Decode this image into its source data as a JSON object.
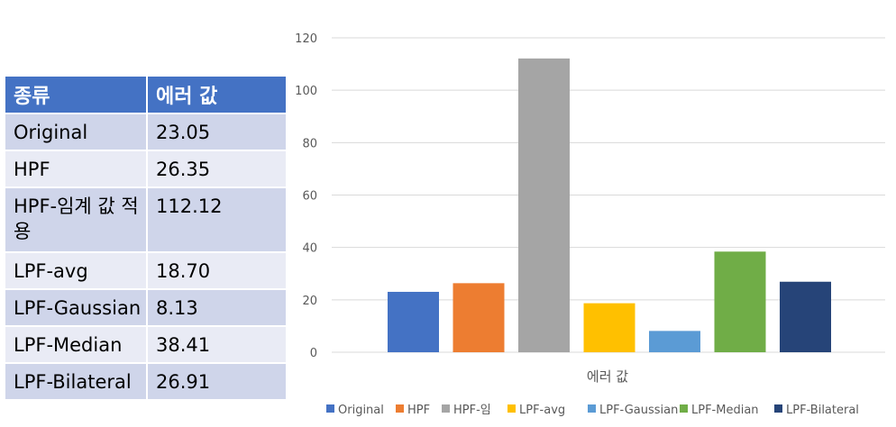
{
  "table": {
    "headers": [
      "종류",
      "에러 값"
    ],
    "rows": [
      {
        "name": "Original",
        "value": "23.05"
      },
      {
        "name": "HPF",
        "value": "26.35"
      },
      {
        "name": "HPF-임계 값 적용",
        "value": "112.12"
      },
      {
        "name": "LPF-avg",
        "value": "18.70"
      },
      {
        "name": "LPF-Gaussian",
        "value": "8.13"
      },
      {
        "name": "LPF-Median",
        "value": "38.41"
      },
      {
        "name": "LPF-Bilateral",
        "value": "26.91"
      }
    ]
  },
  "chart_data": {
    "type": "bar",
    "categories": [
      "에러 값"
    ],
    "xlabel": "",
    "ylabel": "",
    "ylim": [
      0,
      120
    ],
    "yticks": [
      0,
      20,
      40,
      60,
      80,
      100,
      120
    ],
    "grid": true,
    "legend_position": "bottom",
    "series": [
      {
        "name": "Original",
        "values": [
          23.05
        ],
        "color": "#4472c4"
      },
      {
        "name": "HPF",
        "values": [
          26.35
        ],
        "color": "#ed7d31"
      },
      {
        "name": "HPF-임",
        "values": [
          112.12
        ],
        "color": "#a5a5a5"
      },
      {
        "name": "LPF-avg",
        "values": [
          18.7
        ],
        "color": "#ffc000"
      },
      {
        "name": "LPF-Gaussian",
        "values": [
          8.13
        ],
        "color": "#5b9bd5"
      },
      {
        "name": "LPF-Median",
        "values": [
          38.41
        ],
        "color": "#70ad47"
      },
      {
        "name": "LPF-Bilateral",
        "values": [
          26.91
        ],
        "color": "#264478"
      }
    ]
  }
}
